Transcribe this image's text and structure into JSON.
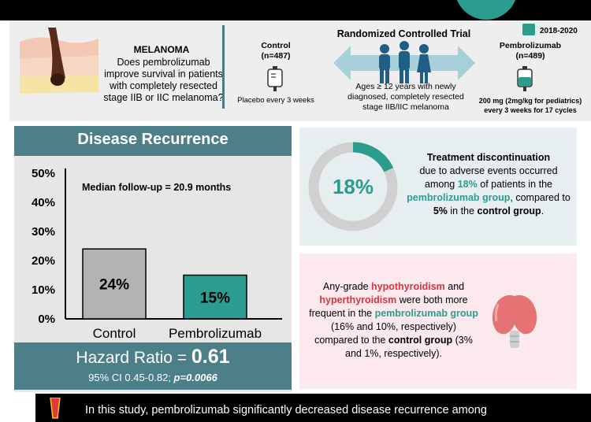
{
  "header": {
    "condition": "MELANOMA",
    "question": "Does pembrolizumab improve survival in patients with completely resected stage IIB or IIC melanoma?",
    "control_title": "Control",
    "control_n": "(n=487)",
    "control_desc": "Placebo every 3 weeks",
    "trial_title": "Randomized Controlled Trial",
    "trial_desc": "Ages ≥ 12 years with newly diagnosed, completely resected stage IIB/IIC melanoma",
    "date_range": "2018-2020",
    "pembro_title": "Pembrolizumab",
    "pembro_n": "(n=489)",
    "pembro_desc_1": "200 mg (2mg/kg for pediatrics)",
    "pembro_desc_2": "every 3 weeks for 17 cycles"
  },
  "recurrence": {
    "title": "Disease Recurrence",
    "median": "Median follow-up = 20.9 months",
    "hr_label": "Hazard Ratio = ",
    "hr_value": "0.61",
    "ci": "95% CI 0.45-0.82; ",
    "p": "p=0.0066"
  },
  "chart_data": {
    "type": "bar",
    "categories": [
      "Control",
      "Pembrolizumab"
    ],
    "values": [
      24,
      15
    ],
    "value_labels": [
      "24%",
      "15%"
    ],
    "bar_colors": [
      "#b3b3b3",
      "#2a9d8f"
    ],
    "yticks": [
      "0%",
      "10%",
      "20%",
      "30%",
      "40%",
      "50%"
    ],
    "ylim": [
      0,
      50
    ]
  },
  "discontinuation": {
    "pct": "18%",
    "pct_value": 18,
    "t1": "Treatment discontinuation",
    "t2": "due to adverse events occurred among ",
    "t3": "18%",
    "t4": " of patients in the ",
    "t5": "pembrolizumab group",
    "t6": ", compared to ",
    "t7": "5%",
    "t8": " in the ",
    "t9": "control group",
    "t10": "."
  },
  "thyroid": {
    "t1": "Any-grade ",
    "t2": "hypothyroidism",
    "t3": " and ",
    "t4": "hyperthyroidism",
    "t5": " were both more frequent in the ",
    "t6": "pembrolizumab group",
    "t7": " (16% and 10%, respectively) compared to the ",
    "t8": "control group",
    "t9": " (3% and 1%, respectively)."
  },
  "footer": {
    "text": "In this study, pembrolizumab significantly decreased disease recurrence among"
  },
  "colors": {
    "teal": "#2a9d8f",
    "slate": "#4d7f88",
    "red": "#d9343d",
    "people": "#1f5f86"
  }
}
